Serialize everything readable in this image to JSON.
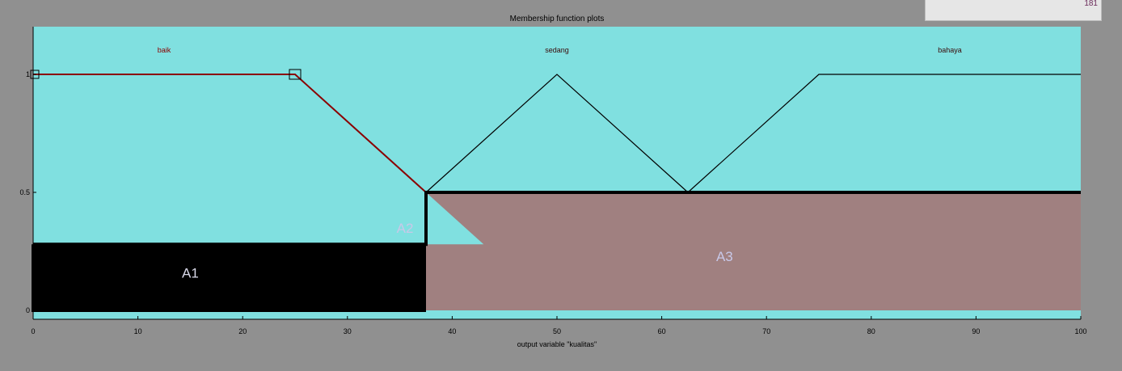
{
  "window": {
    "readout_value": "181"
  },
  "chart_data": {
    "type": "line",
    "title": "Membership function plots",
    "xlabel": "output variable \"kualitas\"",
    "ylabel": "",
    "xlim": [
      0,
      100
    ],
    "ylim": [
      0,
      1
    ],
    "x_ticks": [
      0,
      10,
      20,
      30,
      40,
      50,
      60,
      70,
      80,
      90,
      100
    ],
    "y_ticks": [
      0,
      0.5,
      1
    ],
    "y_tick_labels": [
      "0",
      "0.5",
      "1"
    ],
    "grid": false,
    "series": [
      {
        "name": "baik",
        "x": [
          0,
          25,
          37.5
        ],
        "y": [
          1,
          1,
          0.5
        ],
        "color": "#8b0000",
        "label_x": 12.5
      },
      {
        "name": "sedang",
        "x": [
          37.5,
          50,
          62.5
        ],
        "y": [
          0.5,
          1,
          0.5
        ],
        "color": "#000000",
        "label_x": 50
      },
      {
        "name": "bahaya",
        "x": [
          62.5,
          75,
          100
        ],
        "y": [
          0.5,
          1,
          1
        ],
        "color": "#000000",
        "label_x": 87.5
      }
    ],
    "aggregate_output": {
      "x": [
        0,
        37.5,
        37.5,
        100
      ],
      "y": [
        0.28,
        0.28,
        0.5,
        0.5
      ]
    },
    "regions": [
      {
        "name": "A1",
        "x": 15,
        "y": 0.16
      },
      {
        "name": "A2",
        "x": 35.5,
        "y": 0.35
      },
      {
        "name": "A3",
        "x": 66,
        "y": 0.23
      }
    ],
    "colors": {
      "background": "#80e0e0",
      "area": "#a08080",
      "a1_block": "#000000"
    }
  }
}
